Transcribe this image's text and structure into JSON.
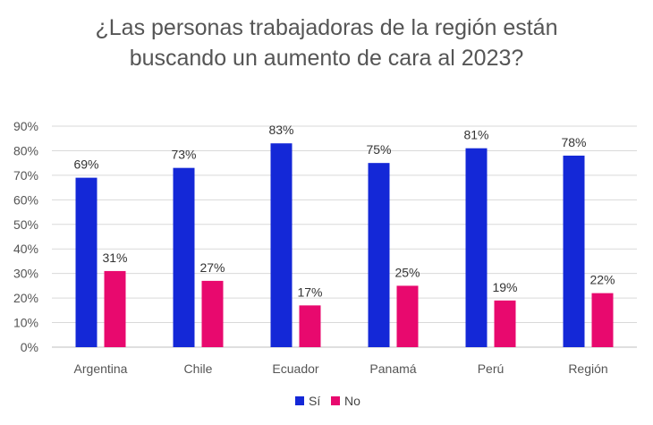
{
  "chart_data": {
    "type": "bar",
    "title_lines": [
      "¿Las personas trabajadoras de la región están",
      "buscando un aumento de cara al 2023?"
    ],
    "categories": [
      "Argentina",
      "Chile",
      "Ecuador",
      "Panamá",
      "Perú",
      "Región"
    ],
    "series": [
      {
        "name": "Sí",
        "color": "#1428D7",
        "values": [
          69,
          73,
          83,
          75,
          81,
          78
        ]
      },
      {
        "name": "No",
        "color": "#E8096E",
        "values": [
          31,
          27,
          17,
          25,
          19,
          22
        ]
      }
    ],
    "ylim": [
      0,
      90
    ],
    "yticks": [
      0,
      10,
      20,
      30,
      40,
      50,
      60,
      70,
      80,
      90
    ],
    "value_suffix": "%",
    "grid": true,
    "legend_position": "bottom"
  }
}
